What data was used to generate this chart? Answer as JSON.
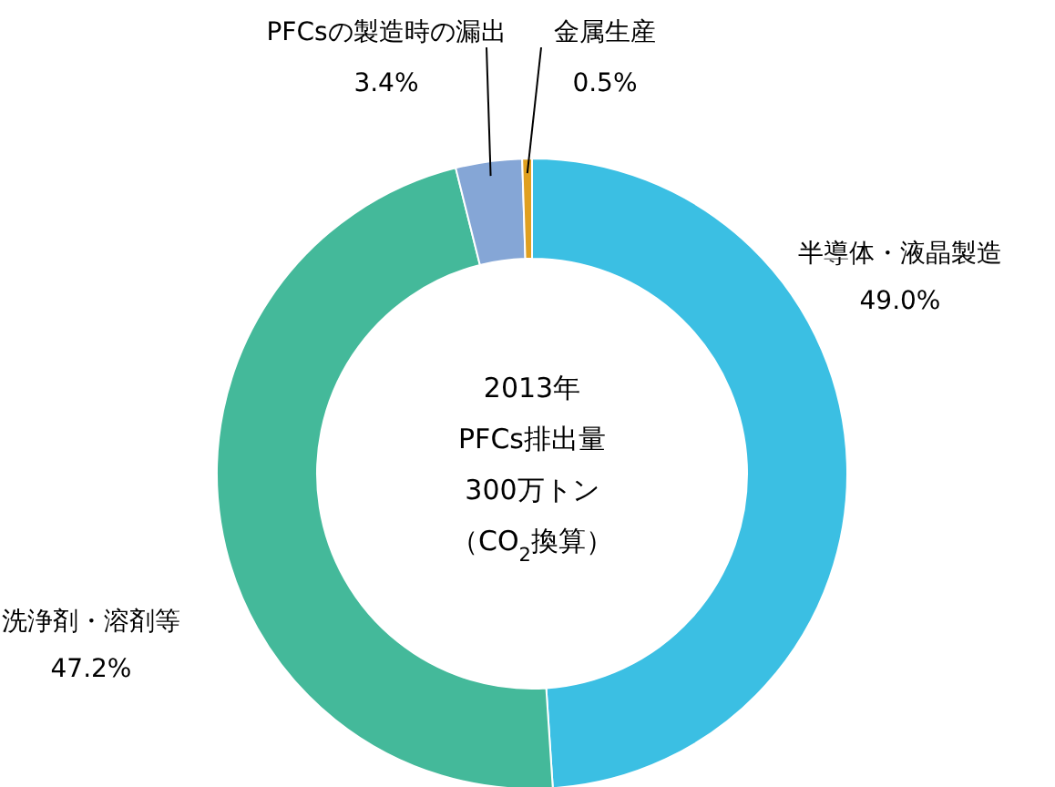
{
  "chart_data": {
    "type": "donut",
    "categories": [
      "半導体・液晶製造",
      "洗浄剤・溶剤等",
      "PFCsの製造時の漏出",
      "金属生産"
    ],
    "values": [
      49.0,
      47.2,
      3.4,
      0.5
    ],
    "colors": [
      "#3bbfe3",
      "#44b99a",
      "#85a6d6",
      "#e0a020"
    ],
    "value_labels": [
      "49.0%",
      "47.2%",
      "3.4%",
      "0.5%"
    ],
    "annotations": [
      "2013年",
      "PFCs排出量",
      "300万トン",
      "（CO$_{2}$換算）"
    ],
    "legend": false
  }
}
